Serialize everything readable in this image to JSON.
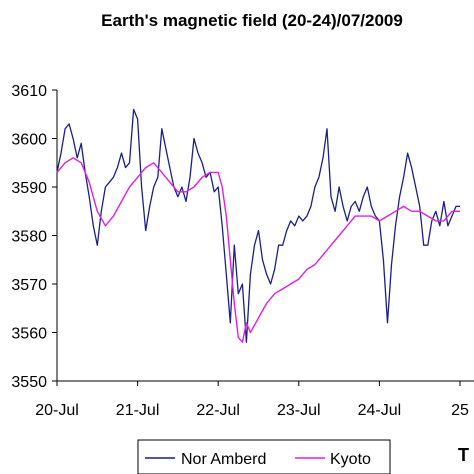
{
  "title": "Earth's magnetic field  (20-24)/07/2009",
  "edge_label": "T",
  "chart_data": {
    "type": "line",
    "title": "Earth's magnetic field  (20-24)/07/2009",
    "xlabel": "",
    "ylabel": "",
    "x_range_days": [
      0,
      5
    ],
    "x_tick_labels": [
      "20-Jul",
      "21-Jul",
      "22-Jul",
      "23-Jul",
      "24-Jul",
      "25"
    ],
    "ylim": [
      3550,
      3610
    ],
    "y_ticks": [
      3550,
      3560,
      3570,
      3580,
      3590,
      3600,
      3610
    ],
    "y_tick_labels": [
      "3550",
      "3560",
      "3570",
      "3580",
      "3590",
      "3600",
      "3610"
    ],
    "grid": false,
    "legend_position": "bottom",
    "series": [
      {
        "name": "Nor Amberd",
        "color": "#1a1f8c",
        "x": [
          0,
          0.05,
          0.1,
          0.15,
          0.2,
          0.25,
          0.3,
          0.35,
          0.4,
          0.45,
          0.5,
          0.55,
          0.6,
          0.65,
          0.7,
          0.75,
          0.8,
          0.85,
          0.9,
          0.95,
          1.0,
          1.05,
          1.1,
          1.15,
          1.2,
          1.25,
          1.3,
          1.35,
          1.4,
          1.45,
          1.5,
          1.55,
          1.6,
          1.65,
          1.7,
          1.75,
          1.8,
          1.85,
          1.9,
          1.95,
          2.0,
          2.05,
          2.1,
          2.15,
          2.2,
          2.25,
          2.3,
          2.35,
          2.4,
          2.45,
          2.5,
          2.55,
          2.6,
          2.65,
          2.7,
          2.75,
          2.8,
          2.85,
          2.9,
          2.95,
          3.0,
          3.05,
          3.1,
          3.15,
          3.2,
          3.25,
          3.3,
          3.35,
          3.4,
          3.45,
          3.5,
          3.55,
          3.6,
          3.65,
          3.7,
          3.75,
          3.8,
          3.85,
          3.9,
          3.95,
          4.0,
          4.05,
          4.1,
          4.15,
          4.2,
          4.25,
          4.3,
          4.35,
          4.4,
          4.45,
          4.5,
          4.55,
          4.6,
          4.65,
          4.7,
          4.75,
          4.8,
          4.85,
          4.9,
          4.95,
          5.0
        ],
        "values": [
          3593,
          3597,
          3602,
          3603,
          3600,
          3596,
          3599,
          3593,
          3588,
          3582,
          3578,
          3585,
          3590,
          3591,
          3592,
          3594,
          3597,
          3594,
          3595,
          3606,
          3604,
          3590,
          3581,
          3586,
          3590,
          3592,
          3602,
          3598,
          3594,
          3590,
          3588,
          3590,
          3587,
          3592,
          3600,
          3597,
          3595,
          3592,
          3593,
          3589,
          3590,
          3582,
          3572,
          3562,
          3578,
          3568,
          3570,
          3558,
          3572,
          3578,
          3581,
          3575,
          3572,
          3570,
          3573,
          3578,
          3578,
          3581,
          3583,
          3582,
          3584,
          3583,
          3584,
          3586,
          3590,
          3592,
          3596,
          3602,
          3588,
          3585,
          3590,
          3586,
          3583,
          3586,
          3587,
          3585,
          3588,
          3590,
          3586,
          3584,
          3583,
          3575,
          3562,
          3574,
          3582,
          3588,
          3592,
          3597,
          3594,
          3590,
          3586,
          3578,
          3578,
          3583,
          3585,
          3582,
          3587,
          3582,
          3584,
          3586,
          3586
        ]
      },
      {
        "name": "Kyoto",
        "color": "#e020e0",
        "x": [
          0,
          0.1,
          0.2,
          0.3,
          0.4,
          0.5,
          0.6,
          0.7,
          0.8,
          0.9,
          1.0,
          1.1,
          1.2,
          1.3,
          1.4,
          1.5,
          1.6,
          1.7,
          1.8,
          1.9,
          2.0,
          2.05,
          2.1,
          2.15,
          2.2,
          2.25,
          2.3,
          2.35,
          2.4,
          2.5,
          2.6,
          2.7,
          2.8,
          2.9,
          3.0,
          3.1,
          3.2,
          3.3,
          3.4,
          3.5,
          3.6,
          3.7,
          3.8,
          3.9,
          4.0,
          4.1,
          4.2,
          4.3,
          4.4,
          4.5,
          4.6,
          4.7,
          4.8,
          4.9,
          5.0
        ],
        "values": [
          3593,
          3595,
          3596,
          3595,
          3591,
          3585,
          3582,
          3584,
          3587,
          3590,
          3592,
          3594,
          3595,
          3593,
          3591,
          3589,
          3589,
          3590,
          3592,
          3593,
          3593,
          3590,
          3584,
          3575,
          3566,
          3559,
          3558,
          3562,
          3560,
          3563,
          3566,
          3568,
          3569,
          3570,
          3571,
          3573,
          3574,
          3576,
          3578,
          3580,
          3582,
          3584,
          3584,
          3584,
          3583,
          3584,
          3585,
          3586,
          3585,
          3585,
          3584,
          3583,
          3583,
          3585,
          3585
        ]
      }
    ]
  }
}
